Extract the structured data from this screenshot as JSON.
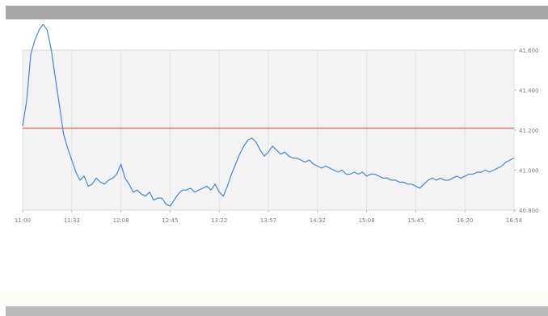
{
  "colors": {
    "page_background": "#ffffff",
    "plot_background": "#f3f3f3",
    "series_line": "#4a86c8",
    "reference_line": "#e06666",
    "gridline": "#e1e1e1",
    "header_bar": "#a8a8a8",
    "footer_bar": "#b9b9b9"
  },
  "chart_data": {
    "type": "line",
    "title": "",
    "xlabel": "",
    "ylabel": "",
    "x_ticks": [
      "11:00",
      "11:33",
      "12:08",
      "12:45",
      "13:22",
      "13:57",
      "14:32",
      "15:08",
      "15:45",
      "16:20",
      "16:54"
    ],
    "y_ticks": [
      "41.600",
      "41.400",
      "41.200",
      "41.000",
      "40.800"
    ],
    "ylim": [
      40.8,
      41.6
    ],
    "y_axis_side": "right",
    "grid": "vertical",
    "legend": "none",
    "reference_line": {
      "y": 41.21
    },
    "series": [
      {
        "x": [
          "11:00",
          "11:03",
          "11:05",
          "11:08",
          "11:11",
          "11:14",
          "11:16",
          "11:19",
          "11:22",
          "11:25",
          "11:28",
          "11:30",
          "11:33",
          "11:36",
          "11:39",
          "11:42",
          "11:45",
          "11:48",
          "11:51",
          "11:53",
          "11:56",
          "11:59",
          "12:02",
          "12:05",
          "12:08",
          "12:10",
          "12:13",
          "12:16",
          "12:19",
          "12:22",
          "12:25",
          "12:28",
          "12:31",
          "12:34",
          "12:37",
          "12:40",
          "12:43",
          "12:45",
          "12:48",
          "12:51",
          "12:54",
          "12:57",
          "13:00",
          "13:03",
          "13:06",
          "13:09",
          "13:12",
          "13:15",
          "13:18",
          "13:22",
          "13:25",
          "13:28",
          "13:31",
          "13:34",
          "13:37",
          "13:40",
          "13:43",
          "13:46",
          "13:49",
          "13:52",
          "13:55",
          "13:57",
          "14:00",
          "14:03",
          "14:06",
          "14:09",
          "14:12",
          "14:15",
          "14:18",
          "14:21",
          "14:24",
          "14:27",
          "14:30",
          "14:32",
          "14:35",
          "14:38",
          "14:41",
          "14:44",
          "14:47",
          "14:50",
          "14:53",
          "14:56",
          "14:59",
          "15:02",
          "15:05",
          "15:08",
          "15:11",
          "15:14",
          "15:17",
          "15:20",
          "15:23",
          "15:26",
          "15:29",
          "15:32",
          "15:35",
          "15:38",
          "15:41",
          "15:45",
          "15:48",
          "15:51",
          "15:54",
          "15:57",
          "16:00",
          "16:03",
          "16:06",
          "16:09",
          "16:12",
          "16:15",
          "16:18",
          "16:20",
          "16:23",
          "16:26",
          "16:29",
          "16:32",
          "16:35",
          "16:38",
          "16:41",
          "16:44",
          "16:47",
          "16:50",
          "16:54"
        ],
        "values": [
          41.22,
          41.35,
          41.58,
          41.65,
          41.7,
          41.73,
          41.7,
          41.6,
          41.46,
          41.32,
          41.18,
          41.11,
          41.05,
          40.99,
          40.95,
          40.97,
          40.92,
          40.93,
          40.96,
          40.94,
          40.93,
          40.95,
          40.96,
          40.98,
          41.03,
          40.96,
          40.93,
          40.89,
          40.9,
          40.88,
          40.87,
          40.89,
          40.85,
          40.86,
          40.86,
          40.83,
          40.82,
          40.85,
          40.88,
          40.9,
          40.9,
          40.91,
          40.89,
          40.9,
          40.91,
          40.92,
          40.9,
          40.93,
          40.89,
          40.87,
          40.92,
          40.98,
          41.03,
          41.08,
          41.12,
          41.15,
          41.16,
          41.14,
          41.1,
          41.07,
          41.09,
          41.12,
          41.1,
          41.08,
          41.09,
          41.07,
          41.06,
          41.06,
          41.05,
          41.04,
          41.05,
          41.03,
          41.02,
          41.01,
          41.02,
          41.01,
          41.0,
          40.99,
          41.0,
          40.98,
          40.98,
          40.99,
          40.98,
          40.99,
          40.97,
          40.98,
          40.98,
          40.97,
          40.96,
          40.96,
          40.95,
          40.95,
          40.94,
          40.94,
          40.93,
          40.93,
          40.92,
          40.91,
          40.93,
          40.95,
          40.96,
          40.95,
          40.96,
          40.95,
          40.95,
          40.96,
          40.97,
          40.96,
          40.97,
          40.98,
          40.98,
          40.99,
          40.99,
          41.0,
          40.99,
          41.0,
          41.01,
          41.02,
          41.04,
          41.05,
          41.06
        ]
      }
    ]
  }
}
